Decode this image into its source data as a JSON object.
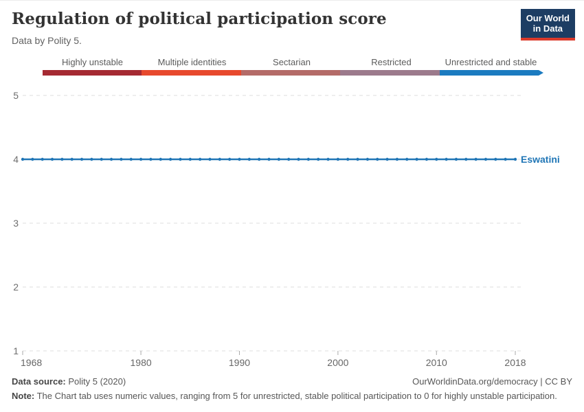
{
  "header": {
    "title": "Regulation of political participation score",
    "subtitle": "Data by Polity 5.",
    "logo": {
      "line1": "Our World",
      "line2": "in Data",
      "bg_color": "#1d3d63",
      "underline_color": "#dc3a2b"
    }
  },
  "legend": {
    "categories": [
      {
        "label": "Highly unstable",
        "color": "#a52a32"
      },
      {
        "label": "Multiple identities",
        "color": "#e7492d"
      },
      {
        "label": "Sectarian",
        "color": "#b46b68"
      },
      {
        "label": "Restricted",
        "color": "#9c7a8c"
      },
      {
        "label": "Unrestricted and stable",
        "color": "#1b7bc0"
      }
    ]
  },
  "chart_data": {
    "type": "line",
    "title": "Regulation of political participation score",
    "xlabel": "",
    "ylabel": "",
    "xlim": [
      1968,
      2018
    ],
    "ylim": [
      1,
      5
    ],
    "x_ticks": [
      1968,
      1980,
      1990,
      2000,
      2010,
      2018
    ],
    "y_ticks": [
      1,
      2,
      3,
      4,
      5
    ],
    "grid": "horizontal-dashed",
    "legend_position": "end-of-line",
    "series": [
      {
        "name": "Eswatini",
        "color": "#2076b6",
        "x": [
          1968,
          1969,
          1970,
          1971,
          1972,
          1973,
          1974,
          1975,
          1976,
          1977,
          1978,
          1979,
          1980,
          1981,
          1982,
          1983,
          1984,
          1985,
          1986,
          1987,
          1988,
          1989,
          1990,
          1991,
          1992,
          1993,
          1994,
          1995,
          1996,
          1997,
          1998,
          1999,
          2000,
          2001,
          2002,
          2003,
          2004,
          2005,
          2006,
          2007,
          2008,
          2009,
          2010,
          2011,
          2012,
          2013,
          2014,
          2015,
          2016,
          2017,
          2018
        ],
        "values": [
          4,
          4,
          4,
          4,
          4,
          4,
          4,
          4,
          4,
          4,
          4,
          4,
          4,
          4,
          4,
          4,
          4,
          4,
          4,
          4,
          4,
          4,
          4,
          4,
          4,
          4,
          4,
          4,
          4,
          4,
          4,
          4,
          4,
          4,
          4,
          4,
          4,
          4,
          4,
          4,
          4,
          4,
          4,
          4,
          4,
          4,
          4,
          4,
          4,
          4,
          4
        ]
      }
    ]
  },
  "footer": {
    "source_label": "Data source:",
    "source_value": " Polity 5 (2020)",
    "credit": "OurWorldinData.org/democracy | CC BY",
    "note_label": "Note:",
    "note_value": " The Chart tab uses numeric values, ranging from 5 for unrestricted, stable political participation to 0 for highly unstable participation."
  }
}
